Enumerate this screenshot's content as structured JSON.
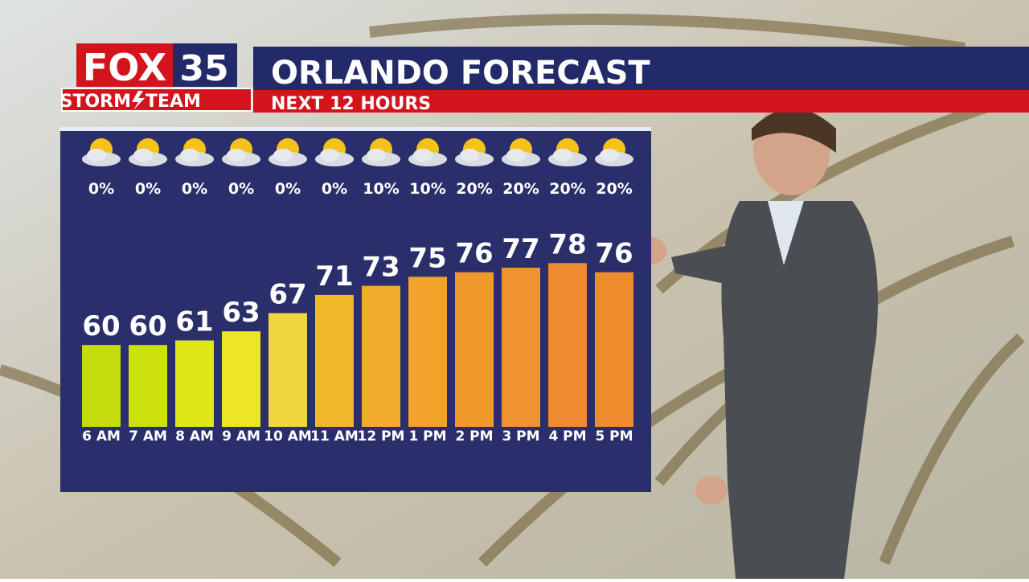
{
  "branding": {
    "station": "FOX",
    "channel": "35",
    "team_left": "STORM",
    "team_right": "TEAM"
  },
  "chart_data": {
    "type": "bar",
    "title": "ORLANDO FORECAST",
    "subtitle": "NEXT 12 HOURS",
    "categories": [
      "6 AM",
      "7 AM",
      "8 AM",
      "9 AM",
      "10 AM",
      "11 AM",
      "12 PM",
      "1 PM",
      "2 PM",
      "3 PM",
      "4 PM",
      "5 PM"
    ],
    "values": [
      60,
      60,
      61,
      63,
      67,
      71,
      73,
      75,
      76,
      77,
      78,
      76
    ],
    "colors": [
      "#c4dc0c",
      "#cce10c",
      "#dde816",
      "#ece624",
      "#f0d63c",
      "#f2b82c",
      "#f3ac2a",
      "#f2a22a",
      "#f09a2c",
      "#ef9230",
      "#ee8a30",
      "#ef8c2e"
    ],
    "precipitation": {
      "values": [
        0,
        0,
        0,
        0,
        0,
        0,
        10,
        10,
        20,
        20,
        20,
        20
      ],
      "value_labels": [
        "0%",
        "0%",
        "0%",
        "0%",
        "0%",
        "0%",
        "10%",
        "10%",
        "20%",
        "20%",
        "20%",
        "20%"
      ]
    },
    "ylim": [
      42,
      80
    ]
  }
}
